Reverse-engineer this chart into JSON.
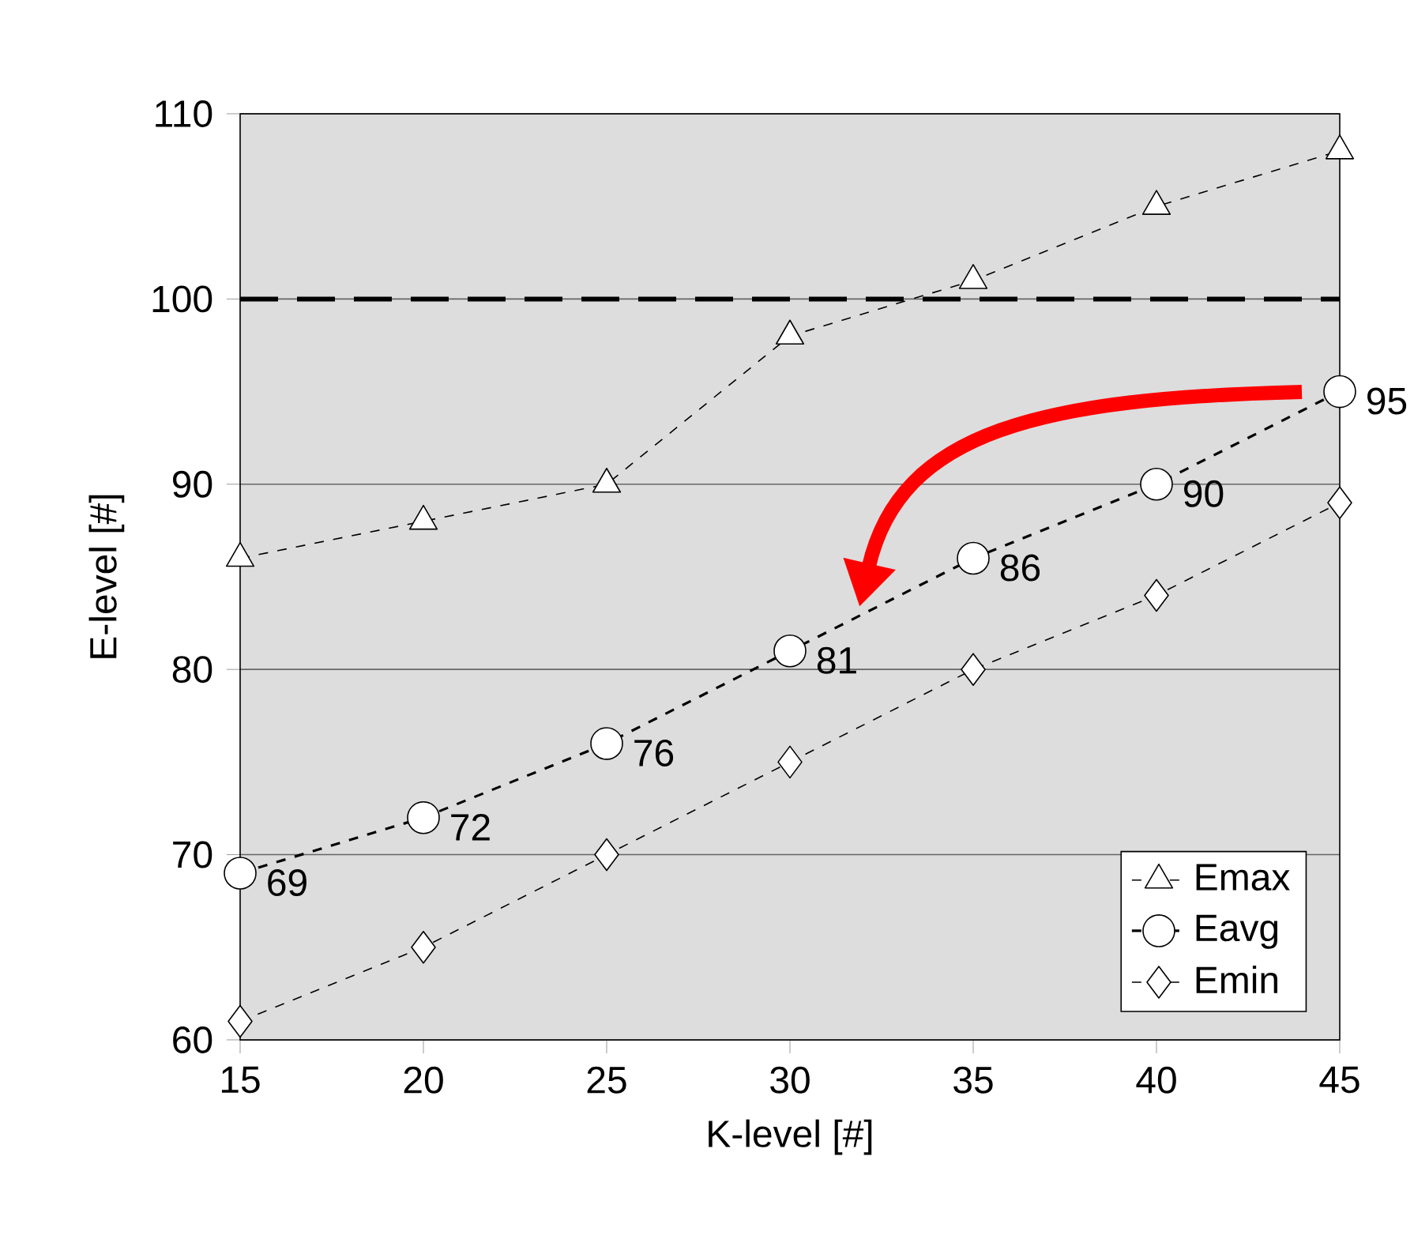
{
  "chart_data": {
    "type": "line",
    "xlabel": "K-level [#]",
    "ylabel": "E-level [#]",
    "x": [
      15,
      20,
      25,
      30,
      35,
      40,
      45
    ],
    "series": [
      {
        "name": "Emax",
        "color": "#000000",
        "marker": "triangle",
        "line_style": "dashed",
        "values": [
          86,
          88,
          90,
          98,
          101,
          105,
          108
        ]
      },
      {
        "name": "Eavg",
        "color": "#000000",
        "marker": "circle",
        "line_style": "dashed",
        "values": [
          69,
          72,
          76,
          81,
          86,
          90,
          95
        ],
        "value_labels": [
          "69",
          "72",
          "76",
          "81",
          "86",
          "90",
          "95"
        ]
      },
      {
        "name": "Emin",
        "color": "#000000",
        "marker": "diamond",
        "line_style": "dashed",
        "values": [
          61,
          65,
          70,
          75,
          80,
          84,
          89
        ]
      }
    ],
    "xlim": [
      15,
      45
    ],
    "xticks": [
      15,
      20,
      25,
      30,
      35,
      40,
      45
    ],
    "ylim": [
      60,
      110
    ],
    "yticks": [
      60,
      70,
      80,
      90,
      100,
      110
    ],
    "grid": "y",
    "legend": "bottom right",
    "ref_lines": [
      {
        "axis": "y",
        "value": 100,
        "color": "#000000",
        "line_style": "dashed"
      }
    ]
  }
}
